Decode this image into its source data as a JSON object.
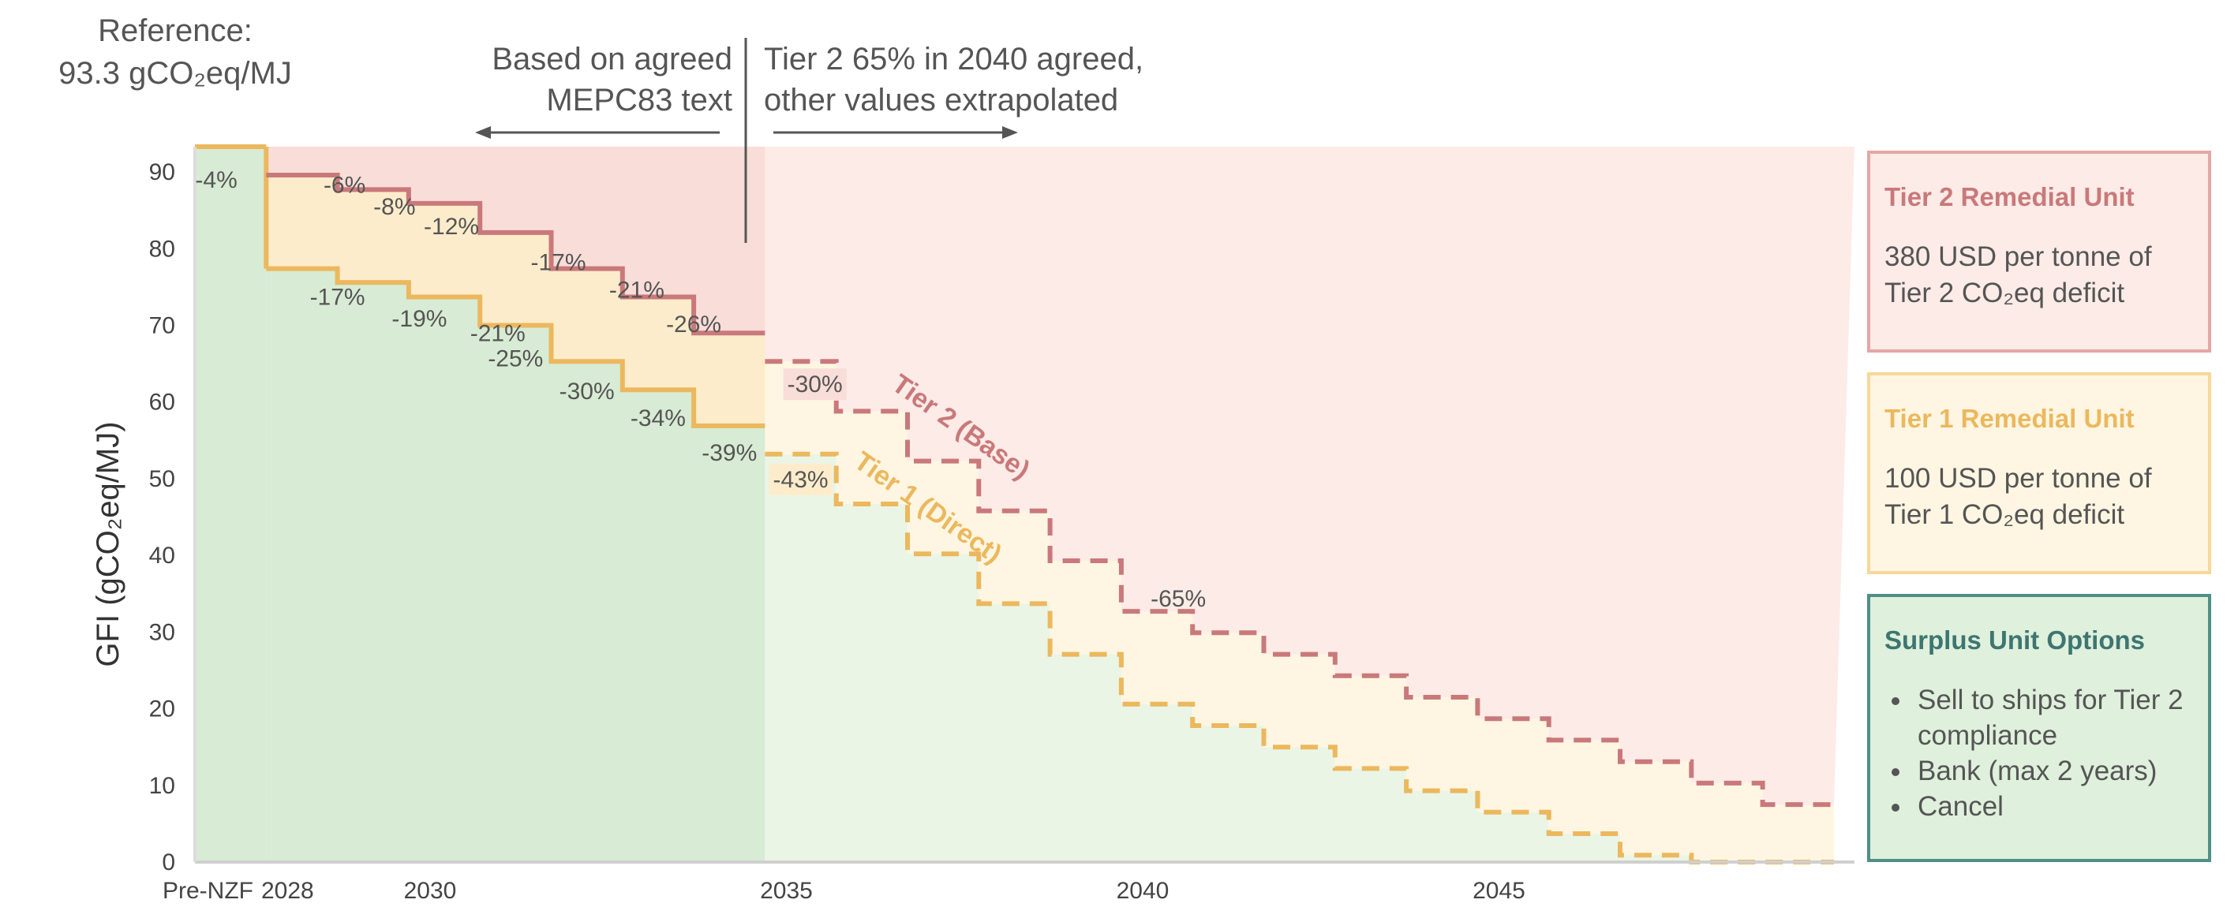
{
  "reference": {
    "line1": "Reference:",
    "line2": "93.3 gCO₂eq/MJ"
  },
  "annotations": {
    "left_line1": "Based on agreed",
    "left_line2": "MEPC83 text",
    "right_line1": "Tier 2 65% in 2040 agreed,",
    "right_line2": "other values extrapolated"
  },
  "panels": {
    "tier2": {
      "title": "Tier 2 Remedial Unit",
      "line1": "380 USD per tonne of",
      "line2": "Tier 2 CO₂eq deficit"
    },
    "tier1": {
      "title": "Tier 1 Remedial Unit",
      "line1": "100 USD per tonne of",
      "line2": "Tier 1 CO₂eq deficit"
    },
    "surplus": {
      "title": "Surplus Unit Options",
      "items": [
        "Sell to ships for Tier 2 compliance",
        "Bank (max 2 years)",
        "Cancel"
      ]
    }
  },
  "colors": {
    "tier2_line": "#c9797b",
    "tier1_line": "#ecb85e",
    "tier2_zone": "#fcebe6",
    "tier1_zone": "#fef6e2",
    "surplus_zone_agreed": "#d8ebd4",
    "surplus_zone_extrapolated": "#eaf5e6",
    "tier2_zone_agreed": "#f9ddd8",
    "tier1_zone_agreed": "#fdeccb"
  },
  "chart_data": {
    "type": "line",
    "ylabel": "GFI (gCO₂eq/MJ)",
    "ylim": [
      0,
      93.3
    ],
    "yticks": [
      0,
      10,
      20,
      30,
      40,
      50,
      60,
      70,
      80,
      90
    ],
    "xticks": [
      "Pre-NZF",
      "2028",
      "2030",
      "2035",
      "2040",
      "2045"
    ],
    "reference_value": 93.3,
    "agreed_until": 2034,
    "series": [
      {
        "name": "Tier 2 (Base)",
        "style": "stepped",
        "years": [
          2028,
          2029,
          2030,
          2031,
          2032,
          2033,
          2034,
          2035,
          2036,
          2037,
          2038,
          2039,
          2040,
          2041,
          2042,
          2043,
          2044,
          2045,
          2046,
          2047,
          2048,
          2049
        ],
        "values": [
          89.6,
          87.7,
          85.9,
          82.1,
          77.4,
          73.7,
          69.0,
          65.3,
          58.8,
          52.3,
          45.8,
          39.3,
          32.7,
          29.9,
          27.1,
          24.3,
          21.5,
          18.7,
          15.9,
          13.1,
          10.3,
          7.5
        ],
        "labels": [
          "-4%",
          "-6%",
          "-8%",
          "-12%",
          "-17%",
          "-21%",
          "-26%",
          "-30%",
          "",
          "",
          "",
          "",
          "-65%",
          "",
          "",
          "",
          "",
          "",
          "",
          "",
          "",
          ""
        ]
      },
      {
        "name": "Tier 1 (Direct)",
        "style": "stepped",
        "years": [
          2028,
          2029,
          2030,
          2031,
          2032,
          2033,
          2034,
          2035,
          2036,
          2037,
          2038,
          2039,
          2040,
          2041,
          2042,
          2043,
          2044,
          2045,
          2046,
          2047,
          2048,
          2049
        ],
        "values": [
          77.4,
          75.6,
          73.7,
          70.0,
          65.3,
          61.6,
          56.9,
          53.2,
          46.7,
          40.2,
          33.7,
          27.1,
          20.6,
          17.8,
          15.0,
          12.2,
          9.3,
          6.5,
          3.7,
          0.9,
          0.0,
          0.0
        ],
        "labels": [
          "-17%",
          "-19%",
          "-21%",
          "-25%",
          "-30%",
          "-34%",
          "-39%",
          "-43%",
          "",
          "",
          "",
          "",
          "",
          "",
          "",
          "",
          "",
          "",
          "",
          "",
          "",
          ""
        ]
      }
    ]
  }
}
